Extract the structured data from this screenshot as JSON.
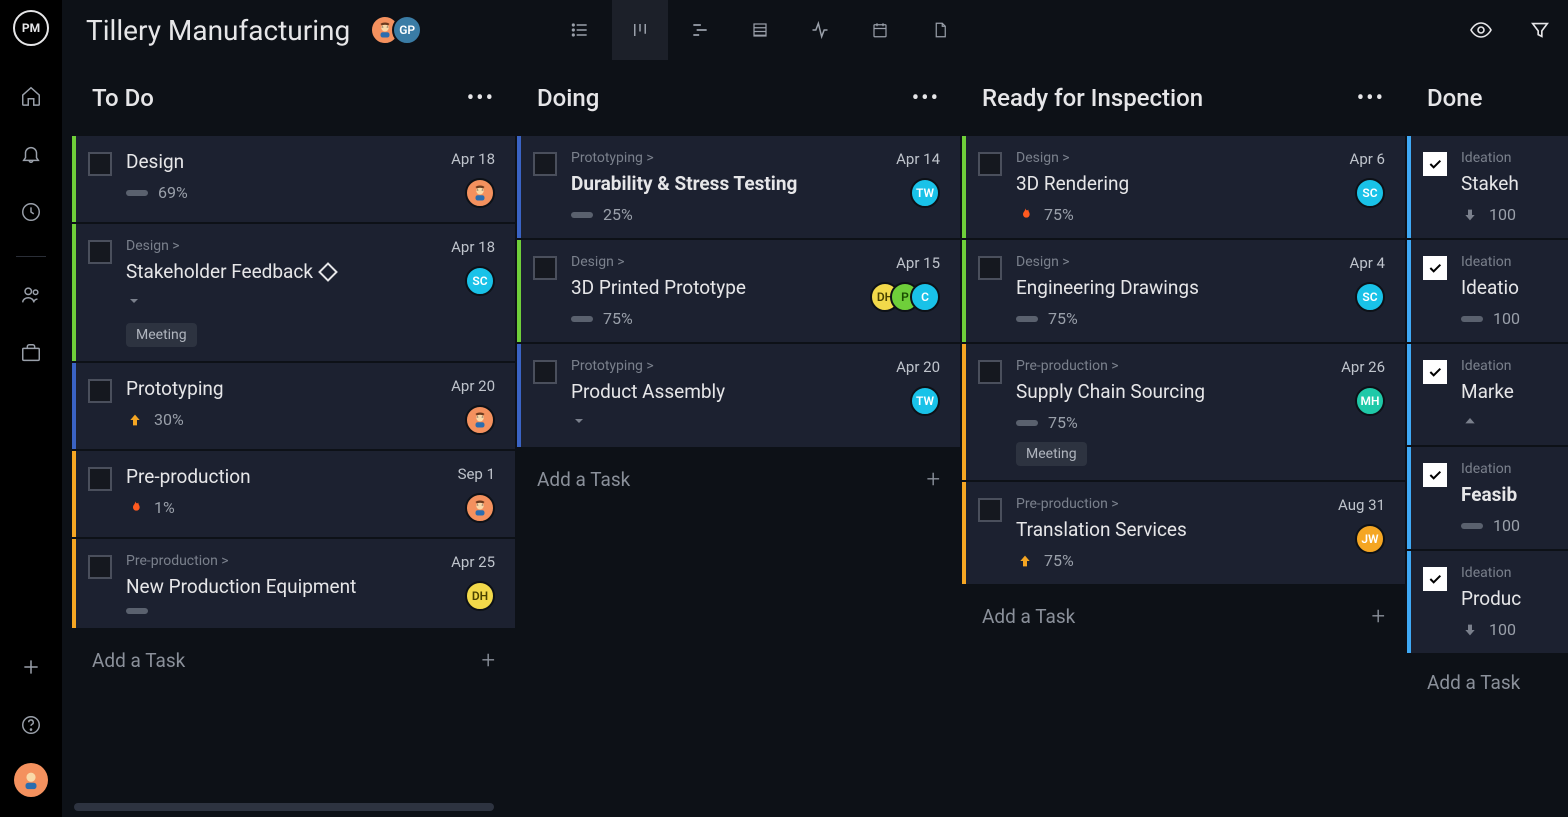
{
  "logo_text": "PM",
  "project_title": "Tillery Manufacturing",
  "header_avatars": [
    {
      "type": "face",
      "bg": "#f4915e"
    },
    {
      "type": "initials",
      "label": "GP",
      "bg": "#3a7ca5",
      "fg": "#ffffff"
    }
  ],
  "view_tabs": [
    {
      "name": "list",
      "active": false
    },
    {
      "name": "board",
      "active": true
    },
    {
      "name": "gantt",
      "active": false
    },
    {
      "name": "sheet",
      "active": false
    },
    {
      "name": "activity",
      "active": false
    },
    {
      "name": "calendar",
      "active": false
    },
    {
      "name": "file",
      "active": false
    }
  ],
  "add_task_label": "Add a Task",
  "colors": {
    "green": "#6fcf3a",
    "blue": "#3fa9f5",
    "blue_dark": "#3a63c4",
    "orange": "#f5a623",
    "fire": "#ff5a1f",
    "yellow": "#f2d94a",
    "teal": "#1fc9a8",
    "cyan": "#19c2e8",
    "card_bg": "#1c2130"
  },
  "columns": [
    {
      "title": "To Do",
      "cards": [
        {
          "stripe": "#6fcf3a",
          "title": "Design",
          "date": "Apr 18",
          "progress": "69%",
          "priority": "bar",
          "assignees": [
            {
              "type": "face",
              "bg": "#f4915e"
            }
          ]
        },
        {
          "stripe": "#6fcf3a",
          "parent": "Design >",
          "title": "Stakeholder Feedback",
          "milestone": true,
          "date": "Apr 18",
          "expand": true,
          "tags": [
            "Meeting"
          ],
          "assignees": [
            {
              "type": "initials",
              "label": "SC",
              "bg": "#19c2e8",
              "fg": "#ffffff"
            }
          ]
        },
        {
          "stripe": "#3a63c4",
          "title": "Prototyping",
          "date": "Apr 20",
          "progress": "30%",
          "priority": "up-orange",
          "assignees": [
            {
              "type": "face",
              "bg": "#f4915e"
            }
          ]
        },
        {
          "stripe": "#f5a623",
          "title": "Pre-production",
          "date": "Sep 1",
          "progress": "1%",
          "priority": "fire",
          "assignees": [
            {
              "type": "face",
              "bg": "#f4915e"
            }
          ]
        },
        {
          "stripe": "#f5a623",
          "parent": "Pre-production >",
          "title": "New Production Equipment",
          "date": "Apr 25",
          "priority": "bar",
          "assignees": [
            {
              "type": "initials",
              "label": "DH",
              "bg": "#f2d94a",
              "fg": "#4a4200"
            }
          ]
        }
      ],
      "show_add": true
    },
    {
      "title": "Doing",
      "cards": [
        {
          "stripe": "#3a63c4",
          "parent": "Prototyping >",
          "title": "Durability & Stress Testing",
          "bold": true,
          "date": "Apr 14",
          "progress": "25%",
          "priority": "bar",
          "assignees": [
            {
              "type": "initials",
              "label": "TW",
              "bg": "#19c2e8",
              "fg": "#ffffff"
            }
          ]
        },
        {
          "stripe": "#6fcf3a",
          "parent": "Design >",
          "title": "3D Printed Prototype",
          "date": "Apr 15",
          "progress": "75%",
          "priority": "bar",
          "assignees": [
            {
              "type": "initials",
              "label": "DH",
              "bg": "#f2d94a",
              "fg": "#4a4200"
            },
            {
              "type": "initials",
              "label": "P",
              "bg": "#6fcf3a",
              "fg": "#1a4d00"
            },
            {
              "type": "initials",
              "label": "C",
              "bg": "#19c2e8",
              "fg": "#ffffff"
            }
          ]
        },
        {
          "stripe": "#3a63c4",
          "parent": "Prototyping >",
          "title": "Product Assembly",
          "date": "Apr 20",
          "expand": true,
          "assignees": [
            {
              "type": "initials",
              "label": "TW",
              "bg": "#19c2e8",
              "fg": "#ffffff"
            }
          ]
        }
      ],
      "show_add": true
    },
    {
      "title": "Ready for Inspection",
      "cards": [
        {
          "stripe": "#6fcf3a",
          "parent": "Design >",
          "title": "3D Rendering",
          "date": "Apr 6",
          "progress": "75%",
          "priority": "fire",
          "assignees": [
            {
              "type": "initials",
              "label": "SC",
              "bg": "#19c2e8",
              "fg": "#ffffff"
            }
          ]
        },
        {
          "stripe": "#6fcf3a",
          "parent": "Design >",
          "title": "Engineering Drawings",
          "date": "Apr 4",
          "progress": "75%",
          "priority": "bar",
          "assignees": [
            {
              "type": "initials",
              "label": "SC",
              "bg": "#19c2e8",
              "fg": "#ffffff"
            }
          ]
        },
        {
          "stripe": "#f5a623",
          "parent": "Pre-production >",
          "title": "Supply Chain Sourcing",
          "date": "Apr 26",
          "progress": "75%",
          "priority": "bar",
          "tags": [
            "Meeting"
          ],
          "assignees": [
            {
              "type": "initials",
              "label": "MH",
              "bg": "#1fc9a8",
              "fg": "#ffffff"
            }
          ]
        },
        {
          "stripe": "#f5a623",
          "parent": "Pre-production >",
          "title": "Translation Services",
          "date": "Aug 31",
          "progress": "75%",
          "priority": "up-orange",
          "assignees": [
            {
              "type": "initials",
              "label": "JW",
              "bg": "#f5a623",
              "fg": "#ffffff"
            }
          ]
        }
      ],
      "show_add": true
    },
    {
      "title": "Done",
      "partial": true,
      "cards": [
        {
          "stripe": "#3fa9f5",
          "parent": "Ideation",
          "title": "Stakeh",
          "done": true,
          "progress": "100",
          "priority": "down-grey"
        },
        {
          "stripe": "#3fa9f5",
          "parent": "Ideation",
          "title": "Ideatio",
          "done": true,
          "progress": "100",
          "priority": "bar"
        },
        {
          "stripe": "#3fa9f5",
          "parent": "Ideation",
          "title": "Marke",
          "done": true,
          "priority": "up-grey"
        },
        {
          "stripe": "#3fa9f5",
          "parent": "Ideation",
          "title": "Feasib",
          "bold": true,
          "done": true,
          "progress": "100",
          "priority": "bar"
        },
        {
          "stripe": "#3fa9f5",
          "parent": "Ideation",
          "title": "Produc",
          "done": true,
          "progress": "100",
          "priority": "down-grey"
        }
      ],
      "show_add": true
    }
  ]
}
